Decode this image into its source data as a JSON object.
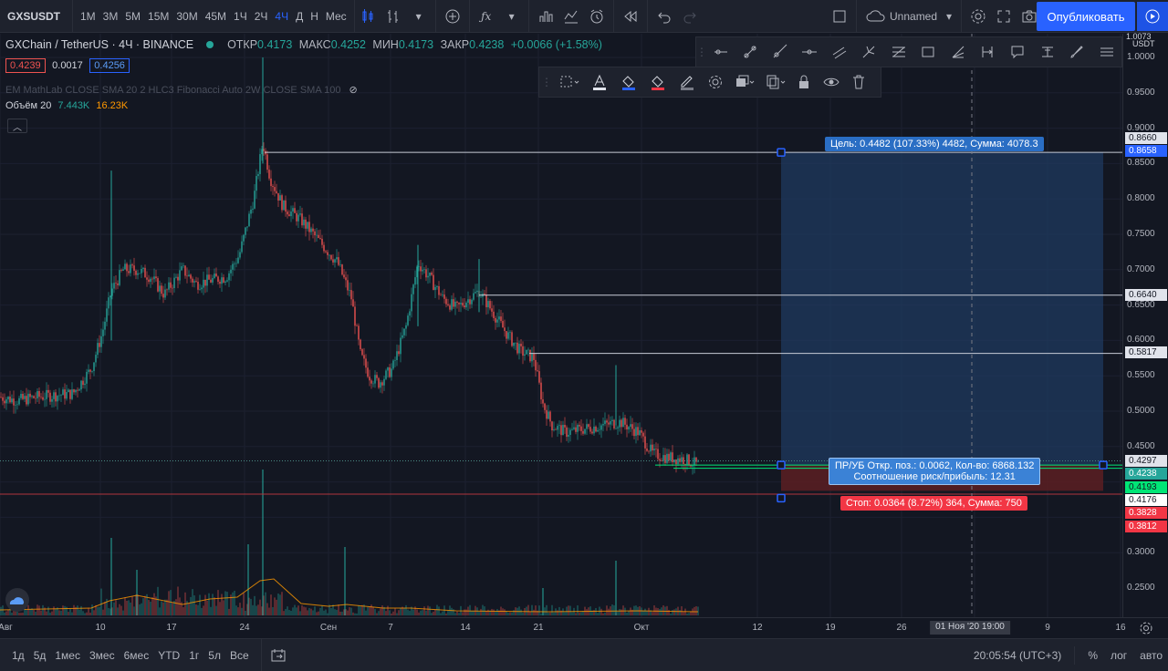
{
  "toolbar": {
    "symbol": "GXSUSDT",
    "intervals": [
      "1М",
      "3М",
      "5М",
      "15М",
      "30М",
      "45М",
      "1Ч",
      "2Ч",
      "4Ч",
      "Д",
      "Н",
      "Мес"
    ],
    "active_interval": "4Ч",
    "layout_name": "Unnamed",
    "publish_label": "Опубликовать"
  },
  "legend": {
    "title": "GXChain / TetherUS · 4Ч · BINANCE",
    "open_key": "ОТКР",
    "open": "0.4173",
    "high_key": "МАКС",
    "high": "0.4252",
    "low_key": "МИН",
    "low": "0.4173",
    "close_key": "ЗАКР",
    "close": "0.4238",
    "change": "+0.0066 (+1.58%)",
    "bid": "0.4239",
    "spread": "0.0017",
    "ask": "0.4256",
    "indicators": "EM MathLab CLOSE SMA 20 2 HLC3 Fibonacci Auto 2W CLOSE SMA 100",
    "volume_name": "Объём 20",
    "volume_1": "7.443K",
    "volume_2": "16.23K"
  },
  "position": {
    "target": "Цель: 0.4482 (107.33%) 4482, Сумма: 4078.3",
    "pnl_line1": "ПР/УБ Откр. поз.: 0.0062, Кол-во: 6868.132",
    "pnl_line2": "Соотношение риск/прибыль: 12.31",
    "stop": "Стоп: 0.0364 (8.72%) 364, Сумма: 750"
  },
  "price_axis": {
    "currency": "USDT",
    "top_value": "1.0073",
    "ticks": [
      "1.0000",
      "0.9500",
      "0.9000",
      "0.8500",
      "0.8000",
      "0.7500",
      "0.7000",
      "0.6500",
      "0.6000",
      "0.5500",
      "0.5000",
      "0.4500",
      "0.3500",
      "0.3000",
      "0.2500"
    ],
    "tags": [
      {
        "value": "0.8660",
        "bg": "#e0e3eb",
        "fg": "#131722"
      },
      {
        "value": "0.8658",
        "bg": "#2962ff",
        "fg": "#ffffff"
      },
      {
        "value": "0.6640",
        "bg": "#e0e3eb",
        "fg": "#131722"
      },
      {
        "value": "0.5817",
        "bg": "#e0e3eb",
        "fg": "#131722"
      },
      {
        "value": "0.4297",
        "bg": "#e0e3eb",
        "fg": "#131722"
      },
      {
        "value": "0.4238",
        "bg": "#26a69a",
        "fg": "#ffffff"
      },
      {
        "value": "0.4193",
        "bg": "#00e676",
        "fg": "#131722"
      },
      {
        "value": "0.4176",
        "bg": "#ffffff",
        "fg": "#131722"
      },
      {
        "value": "0.3828",
        "bg": "#f23645",
        "fg": "#ffffff"
      },
      {
        "value": "0.3812",
        "bg": "#f23645",
        "fg": "#ffffff"
      }
    ]
  },
  "time_axis": {
    "labels": [
      "Авг",
      "10",
      "17",
      "24",
      "Сен",
      "7",
      "14",
      "21",
      "Окт",
      "12",
      "19",
      "26",
      "9",
      "16"
    ],
    "crosshair": "01 Ноя '20   19:00"
  },
  "bottom": {
    "ranges": [
      "1д",
      "5д",
      "1мес",
      "3мес",
      "6мес",
      "YTD",
      "1г",
      "5л",
      "Все"
    ],
    "clock": "20:05:54 (UTC+3)",
    "percent": "%",
    "log": "лог",
    "auto": "авто"
  },
  "colors": {
    "background": "#131722",
    "up": "#26a69a",
    "down": "#ef5350",
    "accent": "#2962ff",
    "profit_zone": "#1f3a5f",
    "loss_zone": "#5c1e22"
  }
}
